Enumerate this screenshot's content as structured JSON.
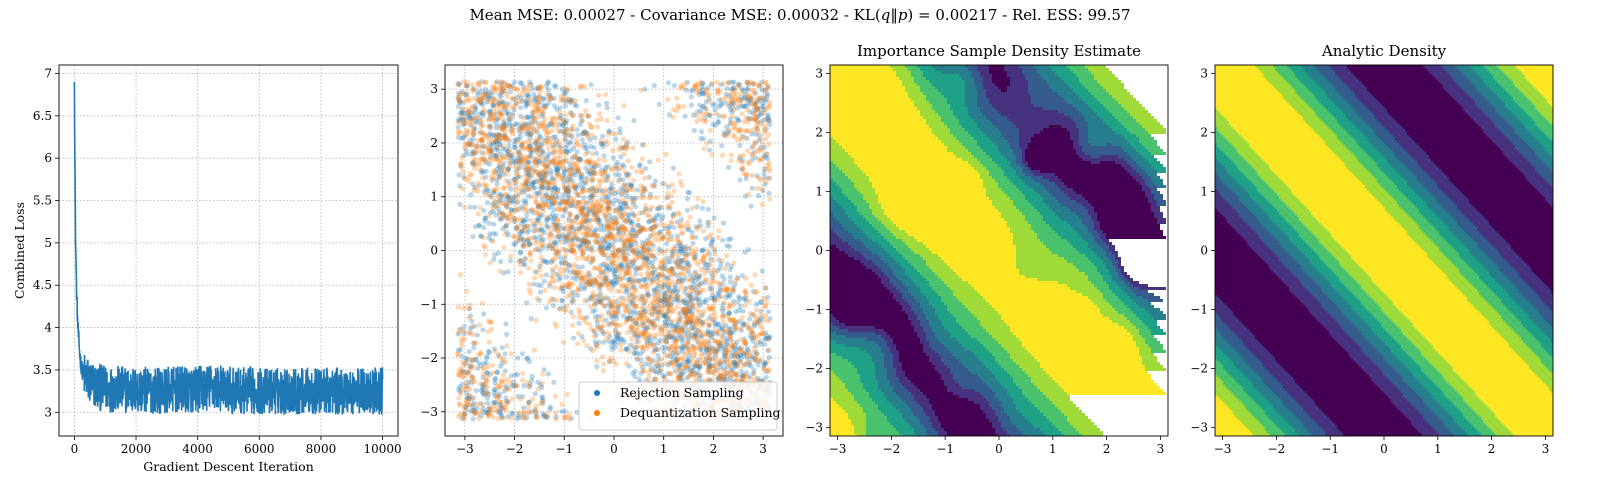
{
  "figure": {
    "suptitle_prefix": "Mean MSE: 0.00027 - Covariance MSE: 0.00032 - KL(",
    "suptitle_q": "q",
    "suptitle_sep": "‖",
    "suptitle_p": "p",
    "suptitle_suffix": ") = 0.00217 - Rel. ESS: 99.57"
  },
  "chart_data": [
    {
      "type": "line",
      "title": "",
      "xlabel": "Gradient Descent Iteration",
      "ylabel": "Combined Loss",
      "xlim": [
        -500,
        10500
      ],
      "ylim": [
        2.72,
        7.1
      ],
      "xticks": [
        0,
        2000,
        4000,
        6000,
        8000,
        10000
      ],
      "yticks": [
        3.0,
        3.5,
        4.0,
        4.5,
        5.0,
        5.5,
        6.0,
        6.5,
        7.0
      ],
      "grid": true,
      "color": "#1f77b4",
      "series": [
        {
          "x": [
            0,
            10,
            20,
            30,
            40,
            60,
            80,
            100,
            130,
            160,
            200,
            250,
            300,
            400,
            500,
            700,
            1000,
            1500,
            2000,
            3000,
            4000,
            4500,
            5000,
            6000,
            7000,
            8000,
            9000,
            10000
          ],
          "y": [
            6.9,
            6.3,
            5.8,
            5.3,
            5.0,
            4.6,
            4.3,
            4.1,
            3.9,
            3.75,
            3.6,
            3.5,
            3.45,
            3.4,
            3.35,
            3.3,
            3.28,
            3.27,
            3.26,
            3.26,
            3.27,
            3.3,
            3.26,
            3.25,
            3.25,
            3.25,
            3.25,
            3.25
          ],
          "noise_amplitude": 0.28
        }
      ]
    },
    {
      "type": "scatter",
      "title": "",
      "xlabel": "",
      "ylabel": "",
      "xlim": [
        -3.4,
        3.4
      ],
      "ylim": [
        -3.45,
        3.45
      ],
      "xticks": [
        -3,
        -2,
        -1,
        0,
        1,
        2,
        3
      ],
      "yticks": [
        -3,
        -2,
        -1,
        0,
        1,
        2,
        3
      ],
      "grid": true,
      "legend_position": "bottom-right",
      "density": "p(x,y) ∝ 1 + cos(x + y)",
      "series": [
        {
          "name": "Rejection Sampling",
          "color": "#1f77b4",
          "n_points": 2600,
          "alpha": 0.3
        },
        {
          "name": "Dequantization Sampling",
          "color": "#ff7f0e",
          "n_points": 2600,
          "alpha": 0.3
        }
      ]
    },
    {
      "type": "heatmap",
      "title": "Importance Sample Density Estimate",
      "xlim": [
        -3.14159,
        3.14159
      ],
      "ylim": [
        -3.14159,
        3.14159
      ],
      "xticks": [
        -3,
        -2,
        -1,
        0,
        1,
        2,
        3
      ],
      "yticks": [
        -3,
        -2,
        -1,
        0,
        1,
        2,
        3
      ],
      "density": "p(x,y) ∝ 1 + cos(x + y)",
      "levels": 8,
      "colormap": [
        "#440154",
        "#46327e",
        "#365c8d",
        "#277f8e",
        "#1fa187",
        "#4ac16d",
        "#a0da39",
        "#fde725"
      ],
      "estimated": true
    },
    {
      "type": "heatmap",
      "title": "Analytic Density",
      "xlim": [
        -3.14159,
        3.14159
      ],
      "ylim": [
        -3.14159,
        3.14159
      ],
      "xticks": [
        -3,
        -2,
        -1,
        0,
        1,
        2,
        3
      ],
      "yticks": [
        -3,
        -2,
        -1,
        0,
        1,
        2,
        3
      ],
      "density": "p(x,y) ∝ 1 + cos(x + y)",
      "levels": 8,
      "colormap": [
        "#440154",
        "#46327e",
        "#365c8d",
        "#277f8e",
        "#1fa187",
        "#4ac16d",
        "#a0da39",
        "#fde725"
      ],
      "estimated": false
    }
  ]
}
